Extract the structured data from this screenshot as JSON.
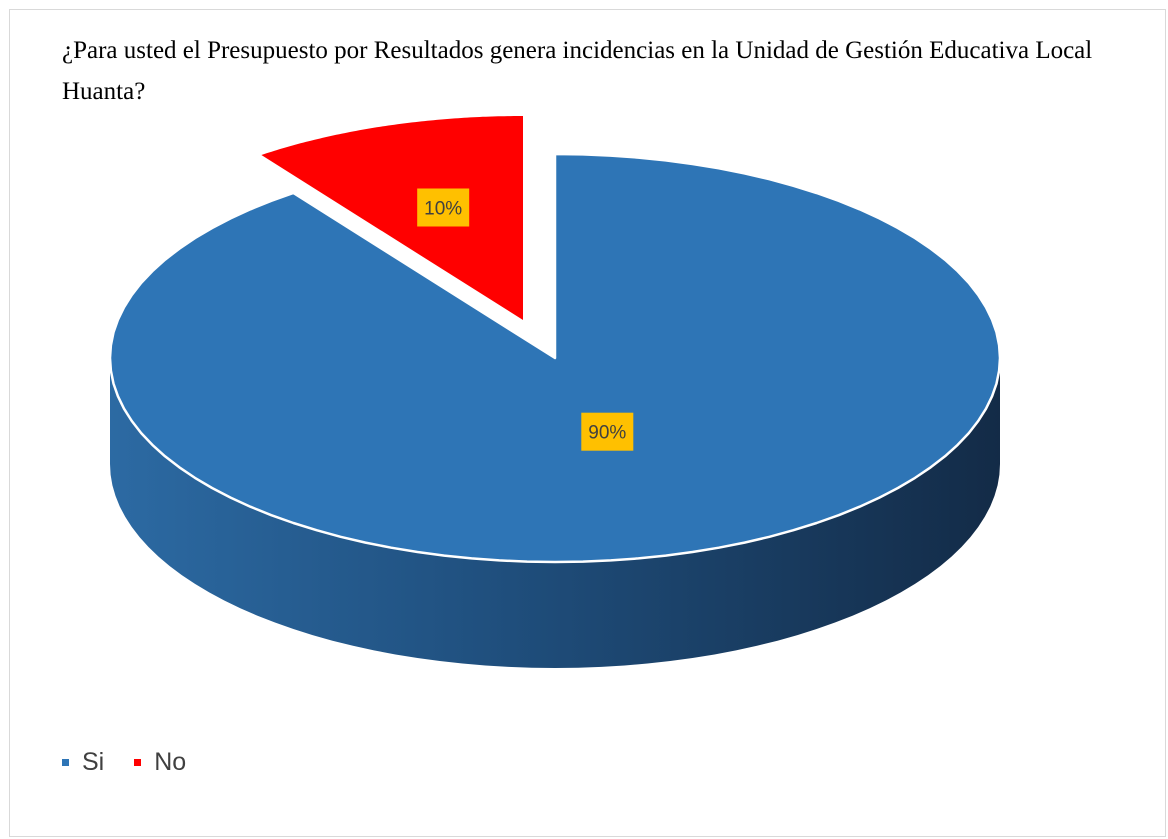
{
  "chart_data": {
    "type": "pie",
    "title": "¿Para usted el Presupuesto por Resultados genera incidencias en la Unidad de Gestión Educativa Local Huanta?",
    "categories": [
      "Si",
      "No"
    ],
    "values": [
      90,
      10
    ],
    "data_labels": [
      "90%",
      "10%"
    ],
    "colors": [
      "#2e75b6",
      "#ff0000"
    ],
    "label_background": "#ffc000",
    "exploded": [
      "No"
    ],
    "style": "3d",
    "legend": {
      "position": "bottom-left",
      "entries": [
        "Si",
        "No"
      ]
    }
  }
}
